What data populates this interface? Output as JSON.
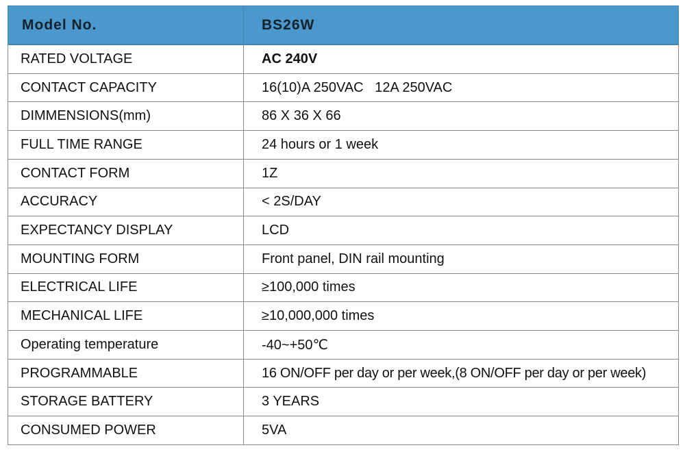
{
  "header": {
    "label": "Model No.",
    "value": "BS26W"
  },
  "rows": [
    {
      "label": "RATED VOLTAGE",
      "value": "AC 240V"
    },
    {
      "label": "CONTACT CAPACITY",
      "value": "16(10)A 250VAC   12A 250VAC"
    },
    {
      "label": "DIMMENSIONS(mm)",
      "value": "86 X 36 X 66"
    },
    {
      "label": "FULL TIME RANGE",
      "value": "24 hours or 1 week"
    },
    {
      "label": "CONTACT FORM",
      "value": "1Z"
    },
    {
      "label": "ACCURACY",
      "value": "< 2S/DAY"
    },
    {
      "label": "EXPECTANCY DISPLAY",
      "value": "LCD"
    },
    {
      "label": "MOUNTING FORM",
      "value": "Front panel, DIN rail mounting"
    },
    {
      "label": "ELECTRICAL LIFE",
      "value": "≥100,000 times"
    },
    {
      "label": "MECHANICAL LIFE",
      "value": "≥10,000,000 times"
    },
    {
      "label": "Operating temperature",
      "value": "-40~+50℃"
    },
    {
      "label": "PROGRAMMABLE",
      "value": "16 ON/OFF per day or per week,(8 ON/OFF per day or per week)"
    },
    {
      "label": "STORAGE BATTERY",
      "value": "3 YEARS"
    },
    {
      "label": "CONSUMED POWER",
      "value": "5VA"
    }
  ],
  "colors": {
    "header_background": "#4a98cc",
    "border": "#8a8a8a"
  }
}
